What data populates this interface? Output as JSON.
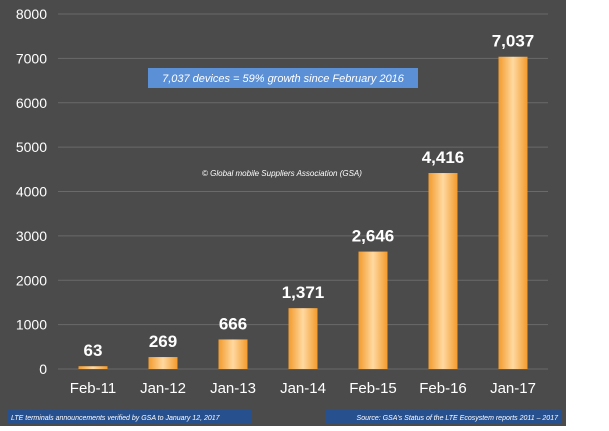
{
  "chart_data": {
    "type": "bar",
    "categories": [
      "Feb-11",
      "Jan-12",
      "Jan-13",
      "Jan-14",
      "Feb-15",
      "Feb-16",
      "Jan-17"
    ],
    "values": [
      63,
      269,
      666,
      1371,
      2646,
      4416,
      7037
    ],
    "value_labels": [
      "63",
      "269",
      "666",
      "1,371",
      "2,646",
      "4,416",
      "7,037"
    ],
    "yticks": [
      "0",
      "1000",
      "2000",
      "3000",
      "4000",
      "5000",
      "6000",
      "7000",
      "8000"
    ],
    "ylim": [
      0,
      8000
    ],
    "grid": true,
    "annotations": {
      "growth_box": "7,037 devices = 59% growth since February 2016",
      "copyright": "© Global mobile Suppliers Association (GSA)"
    },
    "footer": {
      "left": "LTE terminals announcements verified by GSA to January 12, 2017",
      "right": "Source: GSA's Status of the LTE Ecosystem reports 2011 – 2017"
    },
    "colors": {
      "background": "#4b4b4b",
      "gridline": "#6a6a6a",
      "bar_light": "#ffd9a0",
      "bar_dark": "#f39a2c",
      "text": "#ffffff",
      "annotation_box": "#5b8fd6",
      "footer_box": "#27508f"
    }
  }
}
